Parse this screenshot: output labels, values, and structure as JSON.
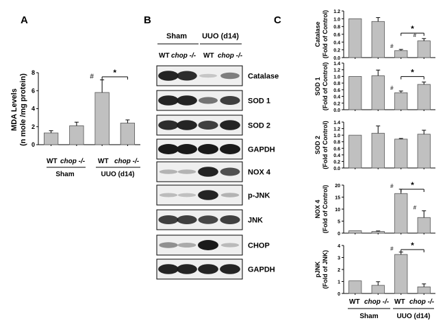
{
  "panel_labels": {
    "a": "A",
    "b": "B",
    "c": "C"
  },
  "colors": {
    "bar_fill": "#c0c0c0",
    "bar_stroke": "#555555",
    "axis": "#000000",
    "blot_bg": "#efefef",
    "band": "#1a1a1a"
  },
  "panel_a": {
    "ylabel_line1": "MDA  Levels",
    "ylabel_line2": "(n mole /mg protein)",
    "ticks": [
      "0",
      "2",
      "4",
      "6",
      "8"
    ],
    "marker": "#",
    "sig": "*",
    "groups": {
      "wt1": "WT",
      "chop1": "chop -/-",
      "wt2": "WT",
      "chop2": "chop -/-",
      "sham": "Sham",
      "uuo": "UUO (d14)"
    }
  },
  "blot": {
    "header_sham": "Sham",
    "header_uuo": "UUO (d14)",
    "lanes": [
      "WT",
      "chop -/-",
      "WT",
      "chop -/-"
    ],
    "proteins": [
      "Catalase",
      "SOD 1",
      "SOD 2",
      "GAPDH",
      "NOX 4",
      "p-JNK",
      "JNK",
      "CHOP",
      "GAPDH"
    ],
    "band_levels": [
      [
        0.95,
        0.9,
        0.05,
        0.45
      ],
      [
        0.95,
        0.95,
        0.5,
        0.8
      ],
      [
        0.9,
        0.95,
        0.8,
        0.95
      ],
      [
        1.0,
        1.0,
        1.0,
        1.0
      ],
      [
        0.15,
        0.15,
        0.95,
        0.7
      ],
      [
        0.1,
        0.08,
        0.95,
        0.15
      ],
      [
        0.8,
        0.8,
        0.75,
        0.8
      ],
      [
        0.35,
        0.2,
        1.0,
        0.12
      ],
      [
        0.95,
        0.95,
        0.95,
        0.95
      ]
    ]
  },
  "panel_c": {
    "footer": {
      "wt1": "WT",
      "chop1": "chop -/-",
      "wt2": "WT",
      "chop2": "chop -/-",
      "sham": "Sham",
      "uuo": "UUO (d14)"
    }
  },
  "chart_data": [
    {
      "type": "bar",
      "panel": "A",
      "categories": [
        "WT Sham",
        "chop -/- Sham",
        "WT UUO (d14)",
        "chop -/- UUO (d14)"
      ],
      "values": [
        1.3,
        2.1,
        5.8,
        2.4
      ],
      "errors": [
        0.25,
        0.4,
        1.4,
        0.35
      ],
      "ylabel": "MDA  Levels (n mole /mg protein)",
      "ylim": [
        0,
        8
      ],
      "markers": [
        "",
        "",
        "#",
        ""
      ],
      "significance": {
        "between": [
          2,
          3
        ],
        "label": "*"
      }
    },
    {
      "type": "bar",
      "panel": "C",
      "ylabel": "Catalase (Fold of Control)",
      "ticks": [
        "0.0",
        "0.2",
        "0.4",
        "0.6",
        "0.8",
        "1.0",
        "1.2"
      ],
      "ylim": [
        0,
        1.2
      ],
      "values": [
        1.0,
        0.93,
        0.18,
        0.43
      ],
      "errors": [
        0,
        0.1,
        0.03,
        0.06
      ],
      "markers": [
        "",
        "",
        "#",
        "#"
      ],
      "significance": {
        "between": [
          2,
          3
        ],
        "label": "*"
      }
    },
    {
      "type": "bar",
      "panel": "C",
      "ylabel": "SOD 1 (Fold of Control)",
      "ticks": [
        "0.0",
        "0.2",
        "0.4",
        "0.6",
        "0.8",
        "1.0",
        "1.2",
        "1.4"
      ],
      "ylim": [
        0,
        1.4
      ],
      "values": [
        1.0,
        1.02,
        0.51,
        0.76
      ],
      "errors": [
        0,
        0.17,
        0.05,
        0.07
      ],
      "markers": [
        "",
        "",
        "#",
        ""
      ],
      "significance": {
        "between": [
          2,
          3
        ],
        "label": "*"
      }
    },
    {
      "type": "bar",
      "panel": "C",
      "ylabel": "SOD 2 (Fold of Control)",
      "ticks": [
        "0.0",
        "0.2",
        "0.4",
        "0.6",
        "0.8",
        "1.0",
        "1.2",
        "1.4"
      ],
      "ylim": [
        0,
        1.4
      ],
      "values": [
        1.0,
        1.06,
        0.88,
        1.03
      ],
      "errors": [
        0,
        0.22,
        0.02,
        0.12
      ],
      "markers": [
        "",
        "",
        "",
        ""
      ],
      "significance": null
    },
    {
      "type": "bar",
      "panel": "C",
      "ylabel": "NOX 4 (Fold of Control)",
      "ticks": [
        "0",
        "5",
        "10",
        "15",
        "20"
      ],
      "ylim": [
        0,
        20
      ],
      "values": [
        1.0,
        0.7,
        16.5,
        6.5
      ],
      "errors": [
        0,
        0.2,
        1.8,
        2.8
      ],
      "markers": [
        "",
        "",
        "#",
        "#"
      ],
      "significance": {
        "between": [
          2,
          3
        ],
        "label": "*"
      }
    },
    {
      "type": "bar",
      "panel": "C",
      "ylabel": "pJNK (Fold of JNK)",
      "ticks": [
        "0",
        "1",
        "2",
        "3",
        "4"
      ],
      "ylim": [
        0,
        4
      ],
      "values": [
        1.05,
        0.68,
        3.25,
        0.55
      ],
      "errors": [
        0,
        0.3,
        0.2,
        0.25
      ],
      "markers": [
        "",
        "",
        "#",
        ""
      ],
      "significance": {
        "between": [
          2,
          3
        ],
        "label": "*"
      }
    }
  ]
}
